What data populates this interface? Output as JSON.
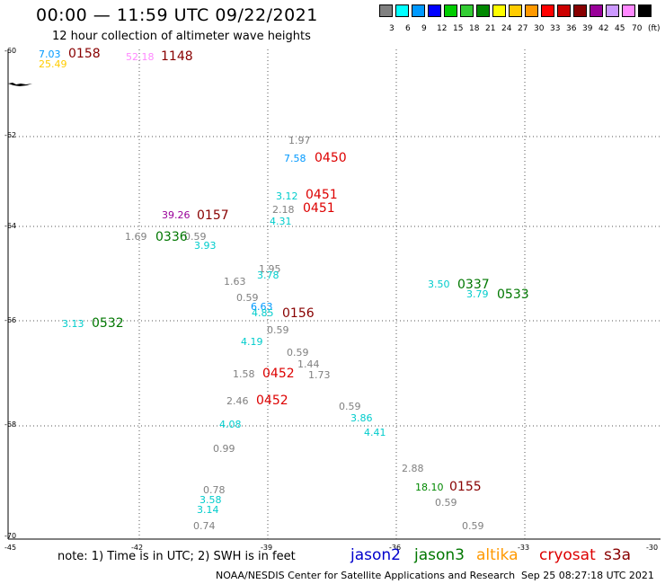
{
  "title": "00:00 — 11:59 UTC 09/22/2021",
  "subtitle": "12 hour collection of altimeter wave heights",
  "scale": {
    "colors": [
      "#808080",
      "#00ffff",
      "#0099ff",
      "#0000ff",
      "#00cc00",
      "#33cc33",
      "#008800",
      "#ffff00",
      "#ffcc00",
      "#ff9900",
      "#ff0000",
      "#cc0000",
      "#880000",
      "#990099",
      "#cc99ff",
      "#ff88ff",
      "#000000"
    ],
    "labels": [
      "3",
      "6",
      "9",
      "12",
      "15",
      "18",
      "21",
      "24",
      "27",
      "30",
      "33",
      "36",
      "39",
      "42",
      "45",
      "70",
      "(ft)"
    ]
  },
  "lat_labels": [
    "-60",
    "-62",
    "-64",
    "-66",
    "-68",
    "-70"
  ],
  "lon_labels": [
    "-45",
    "-42",
    "-39",
    "-36",
    "-33",
    "-30"
  ],
  "satellite_colors": {
    "jason2": "#0000cc",
    "jason3": "#007700",
    "altika": "#ff9900",
    "cryosat": "#dd0000",
    "s3a": "#880000"
  },
  "wave_heights": [
    {
      "text": "7.03",
      "color": "#0099ff"
    },
    {
      "text": "25.49",
      "color": "#ffcc00"
    },
    {
      "text": "52.18",
      "color": "#ff88ff"
    },
    {
      "text": "1.97",
      "color": "#808080"
    },
    {
      "text": "7.58",
      "color": "#0099ff"
    },
    {
      "text": "3.12",
      "color": "#00cccc"
    },
    {
      "text": "2.18",
      "color": "#808080"
    },
    {
      "text": "4.31",
      "color": "#00cccc"
    },
    {
      "text": "39.26",
      "color": "#990099"
    },
    {
      "text": "1.69",
      "color": "#808080"
    },
    {
      "text": "0.59",
      "color": "#808080"
    },
    {
      "text": "3.93",
      "color": "#00cccc"
    },
    {
      "text": "1.95",
      "color": "#808080"
    },
    {
      "text": "3.78",
      "color": "#00cccc"
    },
    {
      "text": "1.63",
      "color": "#808080"
    },
    {
      "text": "0.59",
      "color": "#808080"
    },
    {
      "text": "6.63",
      "color": "#0099ff"
    },
    {
      "text": "4.85",
      "color": "#00cccc"
    },
    {
      "text": "3.13",
      "color": "#00cccc"
    },
    {
      "text": "0.59",
      "color": "#808080"
    },
    {
      "text": "4.19",
      "color": "#00cccc"
    },
    {
      "text": "0.59",
      "color": "#808080"
    },
    {
      "text": "1.44",
      "color": "#808080"
    },
    {
      "text": "1.58",
      "color": "#808080"
    },
    {
      "text": "1.73",
      "color": "#808080"
    },
    {
      "text": "2.46",
      "color": "#808080"
    },
    {
      "text": "0.59",
      "color": "#808080"
    },
    {
      "text": "3.86",
      "color": "#00cccc"
    },
    {
      "text": "4.08",
      "color": "#00cccc"
    },
    {
      "text": "4.41",
      "color": "#00cccc"
    },
    {
      "text": "0.99",
      "color": "#808080"
    },
    {
      "text": "3.50",
      "color": "#00cccc"
    },
    {
      "text": "3.79",
      "color": "#00cccc"
    },
    {
      "text": "2.88",
      "color": "#808080"
    },
    {
      "text": "18.10",
      "color": "#008800"
    },
    {
      "text": "0.59",
      "color": "#808080"
    },
    {
      "text": "0.59",
      "color": "#808080"
    },
    {
      "text": "0.78",
      "color": "#808080"
    },
    {
      "text": "3.58",
      "color": "#00cccc"
    },
    {
      "text": "3.14",
      "color": "#00cccc"
    },
    {
      "text": "0.74",
      "color": "#808080"
    }
  ],
  "pass_times": [
    {
      "text": "0158",
      "color": "#880000"
    },
    {
      "text": "1148",
      "color": "#880000"
    },
    {
      "text": "0450",
      "color": "#dd0000"
    },
    {
      "text": "0451",
      "color": "#dd0000"
    },
    {
      "text": "0451",
      "color": "#dd0000"
    },
    {
      "text": "0157",
      "color": "#880000"
    },
    {
      "text": "0336",
      "color": "#007700"
    },
    {
      "text": "0156",
      "color": "#880000"
    },
    {
      "text": "0532",
      "color": "#007700"
    },
    {
      "text": "0452",
      "color": "#dd0000"
    },
    {
      "text": "0452",
      "color": "#dd0000"
    },
    {
      "text": "0337",
      "color": "#007700"
    },
    {
      "text": "0533",
      "color": "#007700"
    },
    {
      "text": "0155",
      "color": "#880000"
    }
  ],
  "footer": {
    "note": "note: 1) Time is in UTC; 2) SWH is in feet",
    "satellites": [
      "jason2",
      "jason3",
      "altika",
      "cryosat",
      "s3a"
    ],
    "credit": "NOAA/NESDIS Center for Satellite Applications and Research",
    "stamp": "Sep 25 08:27:18 UTC 2021"
  }
}
